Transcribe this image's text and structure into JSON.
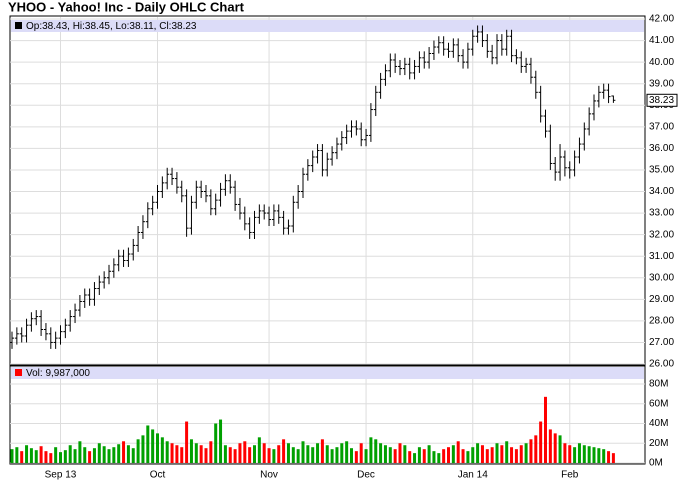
{
  "chart_data": {
    "type": "ohlc",
    "title": "YHOO - Yahoo! Inc - Daily OHLC Chart",
    "ohlc_legend": "Op:38.43, Hi:38.45, Lo:38.11, Cl:38.23",
    "volume_legend": "Vol: 9,987,000",
    "last_close_label": "38.23",
    "categories": [
      null,
      null,
      null,
      null,
      null,
      null,
      null,
      null,
      null,
      null,
      "Sep 13",
      null,
      null,
      null,
      null,
      null,
      null,
      null,
      null,
      null,
      null,
      null,
      null,
      null,
      null,
      null,
      null,
      null,
      null,
      null,
      "Oct",
      null,
      null,
      null,
      null,
      null,
      null,
      null,
      null,
      null,
      null,
      null,
      null,
      null,
      null,
      null,
      null,
      null,
      null,
      null,
      null,
      null,
      null,
      "Nov",
      null,
      null,
      null,
      null,
      null,
      null,
      null,
      null,
      null,
      null,
      null,
      null,
      null,
      null,
      null,
      null,
      null,
      null,
      null,
      "Dec",
      null,
      null,
      null,
      null,
      null,
      null,
      null,
      null,
      null,
      null,
      null,
      null,
      null,
      null,
      null,
      null,
      null,
      null,
      null,
      null,
      null,
      "Jan 14",
      null,
      null,
      null,
      null,
      null,
      null,
      null,
      null,
      null,
      null,
      null,
      null,
      null,
      null,
      null,
      null,
      null,
      null,
      null,
      "Feb",
      null,
      null,
      null,
      null,
      null,
      null,
      null,
      null,
      null
    ],
    "open": [
      27.0,
      27.2,
      27.4,
      27.3,
      27.8,
      28.1,
      28.2,
      27.6,
      27.4,
      27.0,
      27.2,
      27.5,
      27.8,
      28.2,
      28.5,
      28.9,
      29.2,
      29.0,
      29.5,
      29.8,
      30.0,
      30.3,
      30.6,
      31.0,
      30.8,
      31.1,
      31.5,
      32.1,
      32.6,
      33.2,
      33.5,
      34.0,
      34.4,
      34.8,
      34.6,
      34.2,
      33.8,
      32.3,
      33.5,
      34.2,
      34.0,
      33.8,
      33.2,
      33.6,
      34.1,
      34.5,
      34.2,
      33.4,
      33.0,
      32.5,
      32.1,
      32.8,
      33.1,
      33.0,
      32.7,
      33.1,
      32.8,
      32.3,
      32.4,
      33.5,
      34.0,
      34.8,
      35.2,
      35.6,
      35.9,
      35.0,
      35.5,
      35.8,
      36.2,
      36.5,
      36.8,
      37.0,
      36.9,
      36.4,
      36.6,
      37.8,
      38.6,
      39.2,
      39.6,
      40.1,
      39.8,
      39.7,
      39.9,
      39.5,
      39.8,
      40.2,
      40.0,
      40.4,
      40.7,
      40.9,
      40.6,
      40.5,
      40.8,
      40.3,
      40.0,
      40.6,
      41.2,
      41.4,
      41.0,
      40.5,
      40.2,
      41.0,
      40.6,
      41.2,
      40.3,
      40.2,
      39.8,
      39.9,
      39.3,
      38.6,
      37.5,
      36.8,
      35.3,
      34.9,
      35.6,
      35.1,
      35.0,
      35.6,
      36.2,
      36.9,
      37.6,
      38.2,
      38.6,
      38.7,
      38.43
    ],
    "high": [
      27.5,
      27.7,
      27.7,
      28.1,
      28.4,
      28.5,
      28.5,
      27.9,
      27.7,
      27.5,
      27.8,
      28.1,
      28.5,
      28.8,
      29.2,
      29.5,
      29.5,
      29.8,
      30.1,
      30.3,
      30.6,
      30.9,
      31.3,
      31.3,
      31.4,
      31.8,
      32.4,
      32.9,
      33.5,
      33.8,
      34.3,
      34.7,
      35.1,
      35.1,
      34.9,
      34.5,
      34.1,
      33.8,
      34.5,
      34.5,
      34.3,
      34.1,
      33.9,
      34.4,
      34.8,
      34.8,
      34.5,
      33.7,
      33.3,
      32.8,
      33.1,
      33.4,
      33.4,
      33.3,
      33.4,
      33.4,
      33.1,
      32.7,
      33.8,
      34.3,
      35.1,
      35.5,
      35.9,
      36.2,
      36.2,
      35.8,
      36.1,
      36.5,
      36.8,
      37.1,
      37.3,
      37.3,
      37.2,
      36.9,
      38.1,
      38.9,
      39.5,
      39.9,
      40.4,
      40.4,
      40.1,
      40.2,
      40.2,
      40.1,
      40.5,
      40.5,
      40.7,
      41.0,
      41.2,
      41.2,
      40.9,
      41.1,
      41.1,
      40.6,
      40.9,
      41.5,
      41.7,
      41.7,
      41.3,
      40.8,
      41.3,
      41.3,
      41.5,
      41.5,
      40.6,
      40.5,
      40.2,
      40.2,
      39.6,
      38.9,
      37.8,
      37.1,
      35.6,
      36.2,
      35.9,
      35.4,
      35.9,
      36.5,
      37.2,
      37.9,
      38.5,
      38.9,
      39.0,
      39.0,
      38.45
    ],
    "low": [
      26.7,
      26.9,
      27.0,
      27.0,
      27.5,
      27.8,
      27.3,
      27.1,
      26.7,
      26.7,
      26.9,
      27.2,
      27.5,
      27.9,
      28.2,
      28.6,
      28.7,
      28.7,
      29.2,
      29.5,
      29.7,
      30.0,
      30.3,
      30.5,
      30.5,
      30.8,
      31.2,
      31.8,
      32.3,
      32.9,
      33.2,
      33.7,
      34.1,
      34.3,
      33.9,
      33.5,
      31.9,
      32.0,
      33.2,
      33.7,
      33.5,
      32.9,
      32.9,
      33.3,
      33.8,
      33.9,
      33.1,
      32.7,
      32.2,
      31.8,
      31.8,
      32.5,
      32.7,
      32.4,
      32.4,
      32.5,
      32.0,
      32.0,
      32.1,
      33.2,
      33.7,
      34.5,
      34.9,
      35.3,
      34.7,
      34.7,
      35.2,
      35.5,
      35.9,
      36.2,
      36.5,
      36.6,
      36.1,
      36.1,
      36.3,
      37.5,
      38.3,
      38.9,
      39.3,
      39.5,
      39.4,
      39.4,
      39.2,
      39.2,
      39.5,
      39.7,
      39.7,
      40.1,
      40.4,
      40.3,
      40.2,
      40.2,
      40.0,
      39.7,
      39.7,
      40.3,
      40.9,
      40.7,
      40.2,
      39.9,
      39.9,
      40.3,
      40.3,
      40.0,
      39.9,
      39.5,
      39.5,
      39.0,
      38.3,
      37.2,
      36.5,
      35.0,
      34.5,
      34.5,
      34.7,
      34.6,
      34.7,
      35.3,
      35.9,
      36.6,
      37.3,
      37.9,
      38.3,
      38.1,
      38.11
    ],
    "close": [
      27.2,
      27.4,
      27.3,
      27.8,
      28.1,
      28.2,
      27.6,
      27.4,
      27.0,
      27.2,
      27.5,
      27.8,
      28.2,
      28.5,
      28.9,
      29.2,
      29.0,
      29.5,
      29.8,
      30.0,
      30.3,
      30.6,
      31.0,
      30.8,
      31.1,
      31.5,
      32.1,
      32.6,
      33.2,
      33.5,
      34.0,
      34.4,
      34.8,
      34.6,
      34.2,
      33.8,
      32.3,
      33.5,
      34.2,
      34.0,
      33.8,
      33.2,
      33.6,
      34.1,
      34.5,
      34.2,
      33.4,
      33.0,
      32.5,
      32.1,
      32.8,
      33.1,
      33.0,
      32.7,
      33.1,
      32.8,
      32.3,
      32.4,
      33.5,
      34.0,
      34.8,
      35.2,
      35.6,
      35.9,
      35.0,
      35.5,
      35.8,
      36.2,
      36.5,
      36.8,
      37.0,
      36.9,
      36.4,
      36.6,
      37.8,
      38.6,
      39.2,
      39.6,
      40.1,
      39.8,
      39.7,
      39.9,
      39.5,
      39.8,
      40.2,
      40.0,
      40.4,
      40.7,
      40.9,
      40.6,
      40.5,
      40.8,
      40.3,
      40.0,
      40.6,
      41.2,
      41.4,
      41.0,
      40.5,
      40.2,
      41.0,
      40.6,
      41.2,
      40.3,
      40.2,
      39.8,
      39.9,
      39.3,
      38.6,
      37.5,
      36.8,
      35.3,
      34.9,
      35.6,
      35.1,
      35.0,
      35.6,
      36.2,
      36.9,
      37.6,
      38.2,
      38.6,
      38.7,
      38.4,
      38.23
    ],
    "volume": [
      14000000,
      16000000,
      12000000,
      18000000,
      15000000,
      13000000,
      17000000,
      12000000,
      10000000,
      16000000,
      11000000,
      13000000,
      18000000,
      14000000,
      22000000,
      16000000,
      12000000,
      15000000,
      20000000,
      17000000,
      14000000,
      16000000,
      19000000,
      22000000,
      18000000,
      15000000,
      24000000,
      28000000,
      38000000,
      34000000,
      30000000,
      26000000,
      22000000,
      20000000,
      18000000,
      16000000,
      42000000,
      24000000,
      20000000,
      18000000,
      15000000,
      22000000,
      40000000,
      44000000,
      18000000,
      16000000,
      14000000,
      20000000,
      22000000,
      16000000,
      18000000,
      26000000,
      20000000,
      15000000,
      14000000,
      18000000,
      24000000,
      20000000,
      16000000,
      14000000,
      22000000,
      18000000,
      16000000,
      20000000,
      24000000,
      18000000,
      14000000,
      16000000,
      20000000,
      22000000,
      15000000,
      12000000,
      20000000,
      14000000,
      26000000,
      24000000,
      20000000,
      18000000,
      16000000,
      14000000,
      20000000,
      18000000,
      12000000,
      10000000,
      16000000,
      14000000,
      18000000,
      12000000,
      10000000,
      14000000,
      16000000,
      18000000,
      22000000,
      14000000,
      12000000,
      16000000,
      20000000,
      18000000,
      14000000,
      16000000,
      20000000,
      18000000,
      22000000,
      16000000,
      14000000,
      18000000,
      20000000,
      24000000,
      28000000,
      42000000,
      67000000,
      34000000,
      30000000,
      28000000,
      20000000,
      18000000,
      16000000,
      20000000,
      18000000,
      17000000,
      16000000,
      15000000,
      14000000,
      12000000,
      9987000
    ],
    "bar_color": "#000000",
    "up_color": "#00a000",
    "down_color": "#ff0000",
    "ylim": [
      26,
      42
    ],
    "yticks": [
      {
        "value": 26,
        "label": "26.00"
      },
      {
        "value": 27,
        "label": "27.00"
      },
      {
        "value": 28,
        "label": "28.00"
      },
      {
        "value": 29,
        "label": "29.00"
      },
      {
        "value": 30,
        "label": "30.00"
      },
      {
        "value": 31,
        "label": "31.00"
      },
      {
        "value": 32,
        "label": "32.00"
      },
      {
        "value": 33,
        "label": "33.00"
      },
      {
        "value": 34,
        "label": "34.00"
      },
      {
        "value": 35,
        "label": "35.00"
      },
      {
        "value": 36,
        "label": "36.00"
      },
      {
        "value": 37,
        "label": "37.00"
      },
      {
        "value": 38,
        "label": "38.00"
      },
      {
        "value": 39,
        "label": "39.00"
      },
      {
        "value": 40,
        "label": "40.00"
      },
      {
        "value": 41,
        "label": "41.00"
      },
      {
        "value": 42,
        "label": "42.00"
      }
    ],
    "y2lim": [
      0,
      80000000
    ],
    "y2ticks": [
      {
        "value": 0,
        "label": "0M"
      },
      {
        "value": 20000000,
        "label": "20M"
      },
      {
        "value": 40000000,
        "label": "40M"
      },
      {
        "value": 60000000,
        "label": "60M"
      },
      {
        "value": 80000000,
        "label": "80M"
      }
    ],
    "grid": true
  }
}
